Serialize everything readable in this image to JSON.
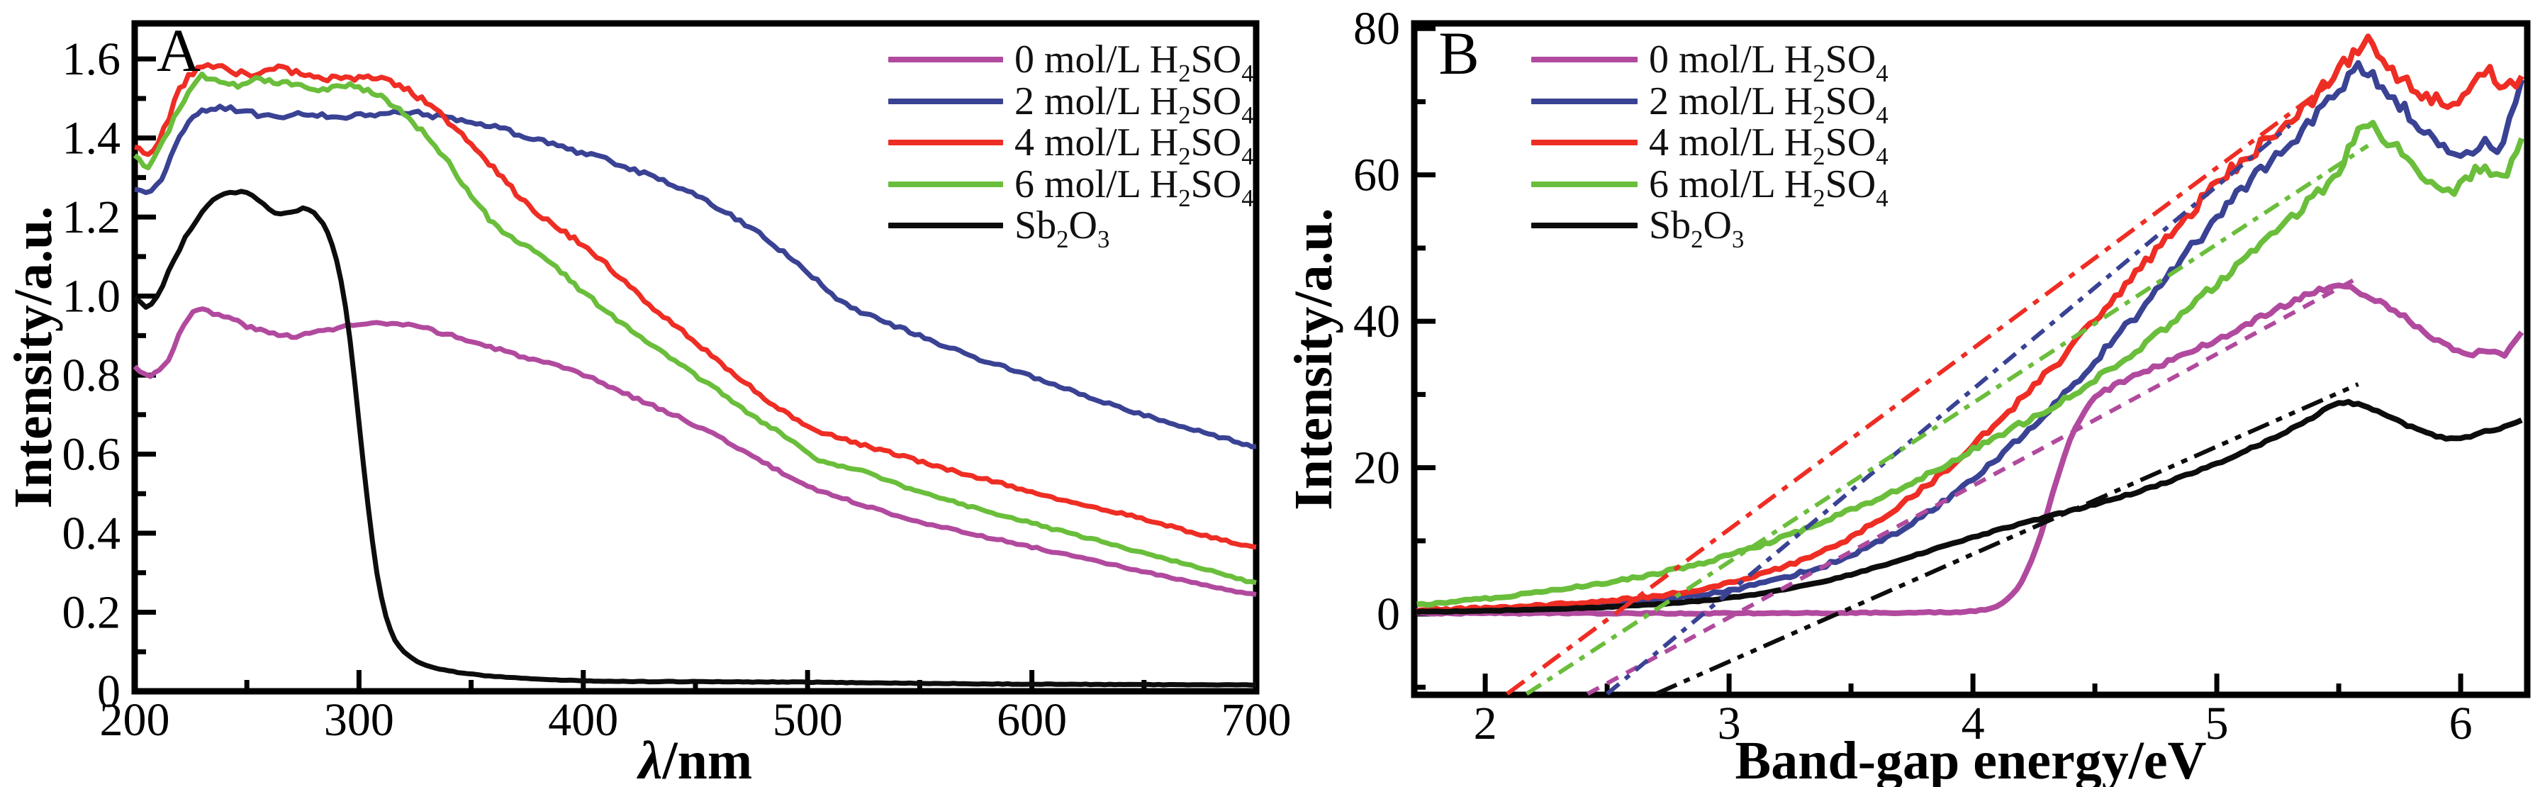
{
  "figure": {
    "background": "#ffffff",
    "panel_a_letter": "A",
    "panel_b_letter": "B",
    "colors": {
      "h2so4_0": "#b14a9e",
      "h2so4_2": "#3a4294",
      "h2so4_4": "#ee2d24",
      "h2so4_6": "#6abe3b",
      "sb2o3": "#0d0d0d"
    }
  },
  "legend": {
    "entries": [
      {
        "label": "0 mol/L H_2SO_4",
        "color": "#b14a9e"
      },
      {
        "label": "2 mol/L H_2SO_4",
        "color": "#3a4294"
      },
      {
        "label": "4 mol/L H_2SO_4",
        "color": "#ee2d24"
      },
      {
        "label": "6 mol/L H_2SO_4",
        "color": "#6abe3b"
      },
      {
        "label": "Sb_2O_3",
        "color": "#0d0d0d"
      }
    ]
  },
  "chart_data": [
    {
      "type": "line",
      "panel_label": "A",
      "xlabel": "λ/nm",
      "xlabel_parts": [
        {
          "t": "λ",
          "italic": true
        },
        {
          "t": "/nm",
          "italic": false
        }
      ],
      "ylabel": "Intensity/a.u.",
      "xlim": [
        200,
        700
      ],
      "ylim": [
        0,
        1.69
      ],
      "x_ticks": [
        200,
        300,
        400,
        500,
        600,
        700
      ],
      "x_tick_labels": [
        "200",
        "300",
        "400",
        "500",
        "600",
        "700"
      ],
      "x_minor_step": 50,
      "y_ticks": [
        0,
        0.2,
        0.4,
        0.6,
        0.8,
        1.0,
        1.2,
        1.4,
        1.6
      ],
      "y_tick_labels": [
        "0",
        "0.2",
        "0.4",
        "0.6",
        "0.8",
        "1.0",
        "1.2",
        "1.4",
        "1.6"
      ],
      "y_minor_step": 0.1,
      "grid": false,
      "legend_position": "top-right-inside",
      "series": [
        {
          "name": "0 mol/L H2SO4",
          "color": "#b14a9e",
          "style": "solid",
          "width": 7,
          "noise": 0.007,
          "x": [
            200,
            207,
            215,
            222,
            228,
            235,
            242,
            252,
            262,
            272,
            282,
            295,
            310,
            322,
            335,
            350,
            365,
            380,
            400,
            420,
            440,
            460,
            480,
            500,
            520,
            540,
            560,
            580,
            600,
            620,
            640,
            660,
            680,
            700
          ],
          "y": [
            0.82,
            0.8,
            0.84,
            0.93,
            0.965,
            0.955,
            0.945,
            0.92,
            0.905,
            0.9,
            0.91,
            0.925,
            0.93,
            0.925,
            0.91,
            0.885,
            0.86,
            0.835,
            0.8,
            0.75,
            0.7,
            0.645,
            0.58,
            0.52,
            0.48,
            0.445,
            0.415,
            0.39,
            0.365,
            0.34,
            0.315,
            0.29,
            0.265,
            0.245
          ]
        },
        {
          "name": "2 mol/L H2SO4",
          "color": "#3a4294",
          "style": "solid",
          "width": 7,
          "noise": 0.007,
          "x": [
            200,
            205,
            212,
            220,
            228,
            238,
            250,
            262,
            275,
            290,
            305,
            320,
            335,
            350,
            365,
            380,
            395,
            410,
            425,
            440,
            455,
            470,
            485,
            500,
            515,
            530,
            550,
            570,
            590,
            610,
            630,
            650,
            670,
            690,
            700
          ],
          "y": [
            1.27,
            1.26,
            1.3,
            1.4,
            1.46,
            1.475,
            1.465,
            1.455,
            1.46,
            1.455,
            1.46,
            1.465,
            1.455,
            1.44,
            1.42,
            1.395,
            1.37,
            1.345,
            1.315,
            1.28,
            1.24,
            1.19,
            1.13,
            1.06,
            0.985,
            0.945,
            0.9,
            0.855,
            0.815,
            0.775,
            0.735,
            0.7,
            0.665,
            0.635,
            0.62
          ]
        },
        {
          "name": "4 mol/L H2SO4",
          "color": "#ee2d24",
          "style": "solid",
          "width": 7,
          "noise": 0.008,
          "x": [
            200,
            206,
            213,
            220,
            228,
            235,
            243,
            252,
            262,
            272,
            282,
            292,
            302,
            312,
            322,
            332,
            342,
            352,
            362,
            372,
            382,
            392,
            402,
            412,
            425,
            440,
            455,
            470,
            485,
            500,
            515,
            530,
            545,
            560,
            580,
            600,
            620,
            640,
            660,
            680,
            700
          ],
          "y": [
            1.38,
            1.36,
            1.42,
            1.52,
            1.575,
            1.585,
            1.57,
            1.56,
            1.575,
            1.565,
            1.555,
            1.55,
            1.555,
            1.545,
            1.52,
            1.48,
            1.43,
            1.37,
            1.31,
            1.25,
            1.2,
            1.16,
            1.12,
            1.07,
            1.0,
            0.93,
            0.86,
            0.79,
            0.725,
            0.67,
            0.64,
            0.615,
            0.59,
            0.565,
            0.535,
            0.505,
            0.475,
            0.45,
            0.42,
            0.39,
            0.365
          ]
        },
        {
          "name": "6 mol/L H2SO4",
          "color": "#6abe3b",
          "style": "solid",
          "width": 7,
          "noise": 0.008,
          "x": [
            200,
            206,
            213,
            222,
            230,
            238,
            246,
            256,
            266,
            276,
            286,
            296,
            306,
            314,
            322,
            332,
            342,
            352,
            362,
            372,
            382,
            392,
            402,
            415,
            430,
            445,
            460,
            475,
            490,
            505,
            520,
            535,
            550,
            565,
            580,
            600,
            620,
            640,
            660,
            680,
            700
          ],
          "y": [
            1.35,
            1.33,
            1.4,
            1.5,
            1.555,
            1.545,
            1.535,
            1.55,
            1.54,
            1.53,
            1.525,
            1.53,
            1.515,
            1.49,
            1.45,
            1.39,
            1.32,
            1.24,
            1.17,
            1.135,
            1.1,
            1.05,
            1.0,
            0.94,
            0.88,
            0.82,
            0.76,
            0.7,
            0.645,
            0.585,
            0.565,
            0.535,
            0.505,
            0.48,
            0.455,
            0.425,
            0.395,
            0.365,
            0.335,
            0.305,
            0.275
          ]
        },
        {
          "name": "Sb2O3",
          "color": "#0d0d0d",
          "style": "solid",
          "width": 7,
          "noise": 0.005,
          "x": [
            200,
            205,
            210,
            215,
            220,
            225,
            230,
            235,
            240,
            245,
            250,
            255,
            260,
            265,
            270,
            275,
            280,
            284,
            288,
            292,
            296,
            300,
            304,
            308,
            312,
            316,
            320,
            326,
            334,
            344,
            356,
            370,
            390,
            420,
            460,
            500,
            550,
            600,
            650,
            700
          ],
          "y": [
            1.0,
            0.97,
            1.0,
            1.06,
            1.12,
            1.17,
            1.21,
            1.24,
            1.255,
            1.265,
            1.26,
            1.24,
            1.22,
            1.205,
            1.215,
            1.22,
            1.21,
            1.18,
            1.13,
            1.04,
            0.89,
            0.68,
            0.47,
            0.3,
            0.19,
            0.13,
            0.1,
            0.075,
            0.058,
            0.048,
            0.04,
            0.034,
            0.028,
            0.025,
            0.024,
            0.023,
            0.02,
            0.018,
            0.017,
            0.016
          ]
        }
      ]
    },
    {
      "type": "line",
      "panel_label": "B",
      "xlabel": "Band-gap energy/eV",
      "xlabel_parts": [
        {
          "t": "Band-gap energy/eV",
          "italic": false
        }
      ],
      "ylabel": "Intensity/a.u.",
      "xlim": [
        1.709,
        6.273
      ],
      "ylim": [
        -11.04,
        80.7
      ],
      "x_ticks": [
        2,
        3,
        4,
        5,
        6
      ],
      "x_tick_labels": [
        "2",
        "3",
        "4",
        "5",
        "6"
      ],
      "x_minor_step": 0.5,
      "y_ticks": [
        0,
        20,
        40,
        60,
        80
      ],
      "y_tick_labels": [
        "0",
        "20",
        "40",
        "60",
        "80"
      ],
      "y_minor_step": 10,
      "grid": false,
      "legend_position": "top-left-inside",
      "series": [
        {
          "name": "0 mol/L H2SO4",
          "color": "#b14a9e",
          "style": "solid",
          "width": 8,
          "noise": 0.55,
          "x": [
            1.72,
            2.0,
            2.5,
            3.0,
            3.5,
            3.8,
            3.95,
            4.05,
            4.12,
            4.2,
            4.28,
            4.35,
            4.42,
            4.5,
            4.6,
            4.7,
            4.8,
            4.9,
            5.0,
            5.1,
            5.2,
            5.3,
            5.4,
            5.5,
            5.55,
            5.65,
            5.75,
            5.85,
            5.95,
            6.05,
            6.1,
            6.18,
            6.25
          ],
          "y": [
            0.1,
            0.1,
            0.1,
            0.1,
            0.15,
            0.2,
            0.3,
            0.6,
            1.5,
            4.5,
            11.0,
            19.0,
            25.5,
            29.5,
            31.5,
            33.0,
            34.5,
            36.0,
            37.5,
            39.0,
            41.0,
            42.5,
            44.0,
            45.0,
            44.5,
            43.0,
            41.0,
            38.5,
            36.5,
            35.5,
            36.0,
            35.5,
            38.5
          ]
        },
        {
          "name": "2 mol/L H2SO4",
          "color": "#3a4294",
          "style": "solid",
          "width": 8,
          "noise": 1.1,
          "x": [
            1.72,
            2.0,
            2.25,
            2.5,
            2.75,
            3.0,
            3.25,
            3.5,
            3.75,
            4.0,
            4.25,
            4.5,
            4.75,
            5.0,
            5.2,
            5.35,
            5.5,
            5.6,
            5.68,
            5.75,
            5.85,
            5.95,
            6.0,
            6.05,
            6.1,
            6.15,
            6.2,
            6.25
          ],
          "y": [
            0.4,
            0.6,
            0.9,
            1.4,
            2.1,
            3.2,
            5.2,
            8.0,
            12.5,
            18.5,
            26.0,
            34.5,
            44.0,
            54.0,
            61.0,
            66.0,
            71.5,
            74.5,
            72.0,
            69.5,
            66.0,
            63.5,
            62.5,
            63.5,
            65.0,
            62.5,
            67.0,
            73.0
          ]
        },
        {
          "name": "4 mol/L H2SO4",
          "color": "#ee2d24",
          "style": "solid",
          "width": 8,
          "noise": 1.1,
          "x": [
            1.72,
            2.0,
            2.25,
            2.5,
            2.75,
            3.0,
            3.25,
            3.5,
            3.75,
            4.0,
            4.25,
            4.5,
            4.75,
            5.0,
            5.2,
            5.35,
            5.5,
            5.6,
            5.7,
            5.8,
            5.9,
            5.97,
            6.05,
            6.12,
            6.18,
            6.25
          ],
          "y": [
            0.5,
            0.8,
            1.2,
            1.8,
            2.7,
            4.2,
            6.8,
            10.5,
            16.0,
            23.0,
            31.0,
            40.0,
            49.5,
            58.5,
            64.5,
            69.0,
            74.0,
            78.0,
            75.0,
            72.0,
            70.5,
            69.5,
            72.5,
            74.5,
            71.5,
            73.5
          ]
        },
        {
          "name": "6 mol/L H2SO4",
          "color": "#6abe3b",
          "style": "solid",
          "width": 8,
          "noise": 0.9,
          "x": [
            1.72,
            2.0,
            2.25,
            2.5,
            2.75,
            3.0,
            3.25,
            3.5,
            3.75,
            4.0,
            4.25,
            4.5,
            4.75,
            5.0,
            5.2,
            5.35,
            5.5,
            5.6,
            5.7,
            5.8,
            5.88,
            5.95,
            6.02,
            6.1,
            6.17,
            6.25
          ],
          "y": [
            1.3,
            2.1,
            3.1,
            4.3,
            5.9,
            8.0,
            10.8,
            14.2,
            18.0,
            22.5,
            27.0,
            32.0,
            38.0,
            45.0,
            51.0,
            55.5,
            60.5,
            67.0,
            64.5,
            62.0,
            58.5,
            57.5,
            59.5,
            61.0,
            59.5,
            65.0
          ]
        },
        {
          "name": "Sb2O3",
          "color": "#0d0d0d",
          "style": "solid",
          "width": 8,
          "noise": 0.35,
          "x": [
            1.72,
            2.0,
            2.25,
            2.5,
            2.75,
            3.0,
            3.25,
            3.5,
            3.75,
            4.0,
            4.25,
            4.5,
            4.75,
            5.0,
            5.2,
            5.35,
            5.5,
            5.6,
            5.7,
            5.8,
            5.9,
            6.0,
            6.1,
            6.18,
            6.25
          ],
          "y": [
            0.3,
            0.45,
            0.65,
            0.95,
            1.45,
            2.2,
            3.5,
            5.4,
            7.9,
            10.5,
            12.8,
            15.0,
            17.5,
            20.5,
            23.5,
            26.0,
            28.8,
            28.4,
            27.0,
            25.5,
            24.3,
            24.0,
            25.0,
            25.5,
            26.5
          ]
        },
        {
          "name": "0 mol/L tauc extrapolation",
          "color": "#b14a9e",
          "style": "dashed",
          "dash": "18 13",
          "width": 6,
          "noise": 0,
          "x_intercept_ev": 3.03,
          "x": [
            2.42,
            5.56
          ],
          "y": [
            -10.9,
            45.6
          ]
        },
        {
          "name": "2 mol/L tauc extrapolation",
          "color": "#3a4294",
          "style": "dash-dot",
          "dash": "22 11 8 11",
          "width": 6,
          "noise": 0,
          "x_intercept_ev": 2.89,
          "x": [
            2.5,
            5.3
          ],
          "y": [
            -10.9,
            66.8
          ]
        },
        {
          "name": "4 mol/L tauc extrapolation",
          "color": "#ee2d24",
          "style": "dash-dot",
          "dash": "30 12 9 12",
          "width": 6,
          "noise": 0,
          "x_intercept_ev": 2.53,
          "x": [
            2.09,
            5.45
          ],
          "y": [
            -10.9,
            72.1
          ]
        },
        {
          "name": "6 mol/L tauc extrapolation",
          "color": "#6abe3b",
          "style": "dash-dot",
          "dash": "24 11 8 11",
          "width": 6,
          "noise": 0,
          "x_intercept_ev": 2.67,
          "x": [
            2.17,
            5.62
          ],
          "y": [
            -10.9,
            64.0
          ]
        },
        {
          "name": "Sb2O3 tauc extrapolation",
          "color": "#0d0d0d",
          "style": "dash-dot-dot",
          "dash": "32 11 9 11 9 11",
          "width": 6,
          "noise": 0,
          "x_intercept_ev": 3.44,
          "x": [
            2.7,
            5.58
          ],
          "y": [
            -10.9,
            31.4
          ]
        }
      ]
    }
  ]
}
